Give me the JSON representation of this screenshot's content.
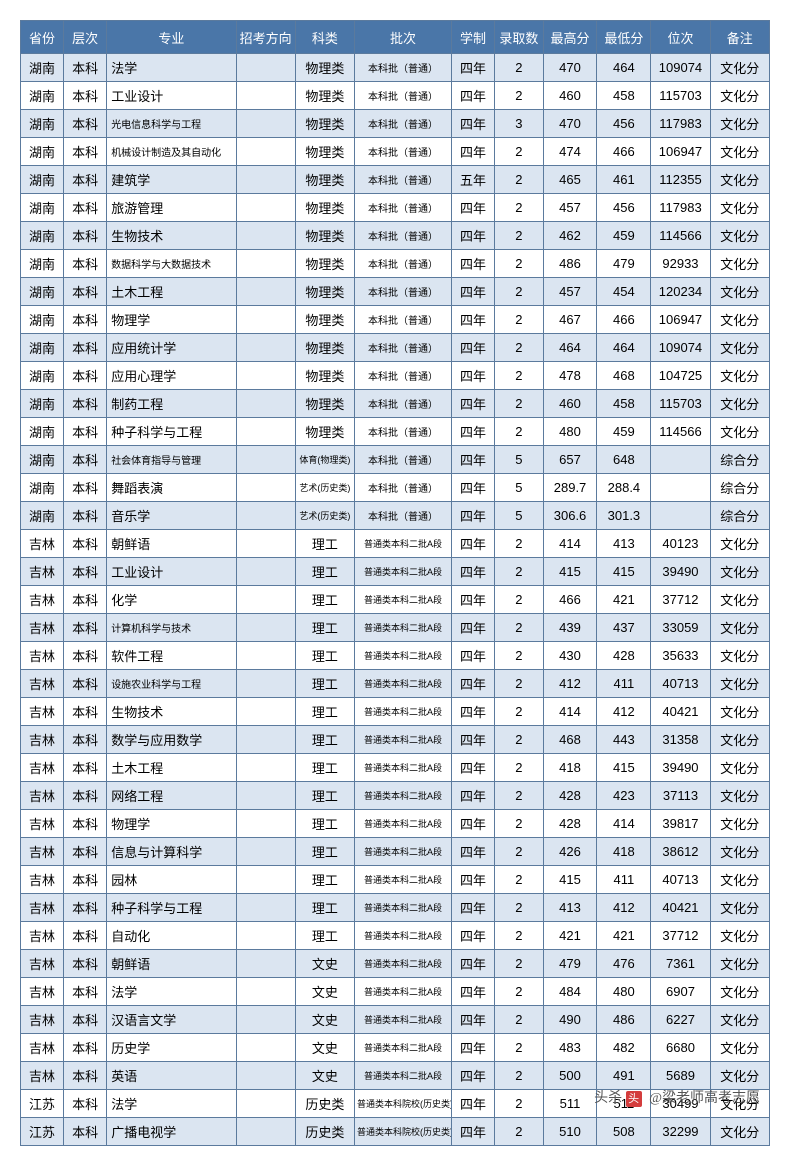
{
  "header": {
    "province": "省份",
    "level": "层次",
    "major": "专业",
    "direction": "招考方向",
    "subject": "科类",
    "batch": "批次",
    "duration": "学制",
    "count": "录取数",
    "max": "最高分",
    "min": "最低分",
    "rank": "位次",
    "note": "备注"
  },
  "rows": [
    {
      "province": "湖南",
      "level": "本科",
      "major": "法学",
      "direction": "",
      "subject": "物理类",
      "batch": "本科批（普通）",
      "duration": "四年",
      "count": "2",
      "max": "470",
      "min": "464",
      "rank": "109074",
      "note": "文化分"
    },
    {
      "province": "湖南",
      "level": "本科",
      "major": "工业设计",
      "direction": "",
      "subject": "物理类",
      "batch": "本科批（普通）",
      "duration": "四年",
      "count": "2",
      "max": "460",
      "min": "458",
      "rank": "115703",
      "note": "文化分"
    },
    {
      "province": "湖南",
      "level": "本科",
      "major": "光电信息科学与工程",
      "majorSmall": true,
      "direction": "",
      "subject": "物理类",
      "batch": "本科批（普通）",
      "duration": "四年",
      "count": "3",
      "max": "470",
      "min": "456",
      "rank": "117983",
      "note": "文化分"
    },
    {
      "province": "湖南",
      "level": "本科",
      "major": "机械设计制造及其自动化",
      "majorSmall": true,
      "direction": "",
      "subject": "物理类",
      "batch": "本科批（普通）",
      "duration": "四年",
      "count": "2",
      "max": "474",
      "min": "466",
      "rank": "106947",
      "note": "文化分"
    },
    {
      "province": "湖南",
      "level": "本科",
      "major": "建筑学",
      "direction": "",
      "subject": "物理类",
      "batch": "本科批（普通）",
      "duration": "五年",
      "count": "2",
      "max": "465",
      "min": "461",
      "rank": "112355",
      "note": "文化分"
    },
    {
      "province": "湖南",
      "level": "本科",
      "major": "旅游管理",
      "direction": "",
      "subject": "物理类",
      "batch": "本科批（普通）",
      "duration": "四年",
      "count": "2",
      "max": "457",
      "min": "456",
      "rank": "117983",
      "note": "文化分"
    },
    {
      "province": "湖南",
      "level": "本科",
      "major": "生物技术",
      "direction": "",
      "subject": "物理类",
      "batch": "本科批（普通）",
      "duration": "四年",
      "count": "2",
      "max": "462",
      "min": "459",
      "rank": "114566",
      "note": "文化分"
    },
    {
      "province": "湖南",
      "level": "本科",
      "major": "数据科学与大数据技术",
      "majorSmall": true,
      "direction": "",
      "subject": "物理类",
      "batch": "本科批（普通）",
      "duration": "四年",
      "count": "2",
      "max": "486",
      "min": "479",
      "rank": "92933",
      "note": "文化分"
    },
    {
      "province": "湖南",
      "level": "本科",
      "major": "土木工程",
      "direction": "",
      "subject": "物理类",
      "batch": "本科批（普通）",
      "duration": "四年",
      "count": "2",
      "max": "457",
      "min": "454",
      "rank": "120234",
      "note": "文化分"
    },
    {
      "province": "湖南",
      "level": "本科",
      "major": "物理学",
      "direction": "",
      "subject": "物理类",
      "batch": "本科批（普通）",
      "duration": "四年",
      "count": "2",
      "max": "467",
      "min": "466",
      "rank": "106947",
      "note": "文化分"
    },
    {
      "province": "湖南",
      "level": "本科",
      "major": "应用统计学",
      "direction": "",
      "subject": "物理类",
      "batch": "本科批（普通）",
      "duration": "四年",
      "count": "2",
      "max": "464",
      "min": "464",
      "rank": "109074",
      "note": "文化分"
    },
    {
      "province": "湖南",
      "level": "本科",
      "major": "应用心理学",
      "direction": "",
      "subject": "物理类",
      "batch": "本科批（普通）",
      "duration": "四年",
      "count": "2",
      "max": "478",
      "min": "468",
      "rank": "104725",
      "note": "文化分"
    },
    {
      "province": "湖南",
      "level": "本科",
      "major": "制药工程",
      "direction": "",
      "subject": "物理类",
      "batch": "本科批（普通）",
      "duration": "四年",
      "count": "2",
      "max": "460",
      "min": "458",
      "rank": "115703",
      "note": "文化分"
    },
    {
      "province": "湖南",
      "level": "本科",
      "major": "种子科学与工程",
      "direction": "",
      "subject": "物理类",
      "batch": "本科批（普通）",
      "duration": "四年",
      "count": "2",
      "max": "480",
      "min": "459",
      "rank": "114566",
      "note": "文化分"
    },
    {
      "province": "湖南",
      "level": "本科",
      "major": "社会体育指导与管理",
      "majorSmall": true,
      "direction": "",
      "subject": "体育(物理类)",
      "subjectSmall": true,
      "batch": "本科批（普通）",
      "duration": "四年",
      "count": "5",
      "max": "657",
      "min": "648",
      "rank": "",
      "note": "综合分"
    },
    {
      "province": "湖南",
      "level": "本科",
      "major": "舞蹈表演",
      "direction": "",
      "subject": "艺术(历史类)",
      "subjectSmall": true,
      "batch": "本科批（普通）",
      "duration": "四年",
      "count": "5",
      "max": "289.7",
      "min": "288.4",
      "rank": "",
      "note": "综合分"
    },
    {
      "province": "湖南",
      "level": "本科",
      "major": "音乐学",
      "direction": "",
      "subject": "艺术(历史类)",
      "subjectSmall": true,
      "batch": "本科批（普通）",
      "duration": "四年",
      "count": "5",
      "max": "306.6",
      "min": "301.3",
      "rank": "",
      "note": "综合分"
    },
    {
      "province": "吉林",
      "level": "本科",
      "major": "朝鲜语",
      "direction": "",
      "subject": "理工",
      "batch": "普通类本科二批A段",
      "batchSmall": true,
      "duration": "四年",
      "count": "2",
      "max": "414",
      "min": "413",
      "rank": "40123",
      "note": "文化分"
    },
    {
      "province": "吉林",
      "level": "本科",
      "major": "工业设计",
      "direction": "",
      "subject": "理工",
      "batch": "普通类本科二批A段",
      "batchSmall": true,
      "duration": "四年",
      "count": "2",
      "max": "415",
      "min": "415",
      "rank": "39490",
      "note": "文化分"
    },
    {
      "province": "吉林",
      "level": "本科",
      "major": "化学",
      "direction": "",
      "subject": "理工",
      "batch": "普通类本科二批A段",
      "batchSmall": true,
      "duration": "四年",
      "count": "2",
      "max": "466",
      "min": "421",
      "rank": "37712",
      "note": "文化分"
    },
    {
      "province": "吉林",
      "level": "本科",
      "major": "计算机科学与技术",
      "majorSmall": true,
      "direction": "",
      "subject": "理工",
      "batch": "普通类本科二批A段",
      "batchSmall": true,
      "duration": "四年",
      "count": "2",
      "max": "439",
      "min": "437",
      "rank": "33059",
      "note": "文化分"
    },
    {
      "province": "吉林",
      "level": "本科",
      "major": "软件工程",
      "direction": "",
      "subject": "理工",
      "batch": "普通类本科二批A段",
      "batchSmall": true,
      "duration": "四年",
      "count": "2",
      "max": "430",
      "min": "428",
      "rank": "35633",
      "note": "文化分"
    },
    {
      "province": "吉林",
      "level": "本科",
      "major": "设施农业科学与工程",
      "majorSmall": true,
      "direction": "",
      "subject": "理工",
      "batch": "普通类本科二批A段",
      "batchSmall": true,
      "duration": "四年",
      "count": "2",
      "max": "412",
      "min": "411",
      "rank": "40713",
      "note": "文化分"
    },
    {
      "province": "吉林",
      "level": "本科",
      "major": "生物技术",
      "direction": "",
      "subject": "理工",
      "batch": "普通类本科二批A段",
      "batchSmall": true,
      "duration": "四年",
      "count": "2",
      "max": "414",
      "min": "412",
      "rank": "40421",
      "note": "文化分"
    },
    {
      "province": "吉林",
      "level": "本科",
      "major": "数学与应用数学",
      "direction": "",
      "subject": "理工",
      "batch": "普通类本科二批A段",
      "batchSmall": true,
      "duration": "四年",
      "count": "2",
      "max": "468",
      "min": "443",
      "rank": "31358",
      "note": "文化分"
    },
    {
      "province": "吉林",
      "level": "本科",
      "major": "土木工程",
      "direction": "",
      "subject": "理工",
      "batch": "普通类本科二批A段",
      "batchSmall": true,
      "duration": "四年",
      "count": "2",
      "max": "418",
      "min": "415",
      "rank": "39490",
      "note": "文化分"
    },
    {
      "province": "吉林",
      "level": "本科",
      "major": "网络工程",
      "direction": "",
      "subject": "理工",
      "batch": "普通类本科二批A段",
      "batchSmall": true,
      "duration": "四年",
      "count": "2",
      "max": "428",
      "min": "423",
      "rank": "37113",
      "note": "文化分"
    },
    {
      "province": "吉林",
      "level": "本科",
      "major": "物理学",
      "direction": "",
      "subject": "理工",
      "batch": "普通类本科二批A段",
      "batchSmall": true,
      "duration": "四年",
      "count": "2",
      "max": "428",
      "min": "414",
      "rank": "39817",
      "note": "文化分"
    },
    {
      "province": "吉林",
      "level": "本科",
      "major": "信息与计算科学",
      "direction": "",
      "subject": "理工",
      "batch": "普通类本科二批A段",
      "batchSmall": true,
      "duration": "四年",
      "count": "2",
      "max": "426",
      "min": "418",
      "rank": "38612",
      "note": "文化分"
    },
    {
      "province": "吉林",
      "level": "本科",
      "major": "园林",
      "direction": "",
      "subject": "理工",
      "batch": "普通类本科二批A段",
      "batchSmall": true,
      "duration": "四年",
      "count": "2",
      "max": "415",
      "min": "411",
      "rank": "40713",
      "note": "文化分"
    },
    {
      "province": "吉林",
      "level": "本科",
      "major": "种子科学与工程",
      "direction": "",
      "subject": "理工",
      "batch": "普通类本科二批A段",
      "batchSmall": true,
      "duration": "四年",
      "count": "2",
      "max": "413",
      "min": "412",
      "rank": "40421",
      "note": "文化分"
    },
    {
      "province": "吉林",
      "level": "本科",
      "major": "自动化",
      "direction": "",
      "subject": "理工",
      "batch": "普通类本科二批A段",
      "batchSmall": true,
      "duration": "四年",
      "count": "2",
      "max": "421",
      "min": "421",
      "rank": "37712",
      "note": "文化分"
    },
    {
      "province": "吉林",
      "level": "本科",
      "major": "朝鲜语",
      "direction": "",
      "subject": "文史",
      "batch": "普通类本科二批A段",
      "batchSmall": true,
      "duration": "四年",
      "count": "2",
      "max": "479",
      "min": "476",
      "rank": "7361",
      "note": "文化分"
    },
    {
      "province": "吉林",
      "level": "本科",
      "major": "法学",
      "direction": "",
      "subject": "文史",
      "batch": "普通类本科二批A段",
      "batchSmall": true,
      "duration": "四年",
      "count": "2",
      "max": "484",
      "min": "480",
      "rank": "6907",
      "note": "文化分"
    },
    {
      "province": "吉林",
      "level": "本科",
      "major": "汉语言文学",
      "direction": "",
      "subject": "文史",
      "batch": "普通类本科二批A段",
      "batchSmall": true,
      "duration": "四年",
      "count": "2",
      "max": "490",
      "min": "486",
      "rank": "6227",
      "note": "文化分"
    },
    {
      "province": "吉林",
      "level": "本科",
      "major": "历史学",
      "direction": "",
      "subject": "文史",
      "batch": "普通类本科二批A段",
      "batchSmall": true,
      "duration": "四年",
      "count": "2",
      "max": "483",
      "min": "482",
      "rank": "6680",
      "note": "文化分"
    },
    {
      "province": "吉林",
      "level": "本科",
      "major": "英语",
      "direction": "",
      "subject": "文史",
      "batch": "普通类本科二批A段",
      "batchSmall": true,
      "duration": "四年",
      "count": "2",
      "max": "500",
      "min": "491",
      "rank": "5689",
      "note": "文化分"
    },
    {
      "province": "江苏",
      "level": "本科",
      "major": "法学",
      "direction": "",
      "subject": "历史类",
      "batch": "普通类本科院校(历史类)",
      "batchSmall": true,
      "duration": "四年",
      "count": "2",
      "max": "511",
      "min": "511",
      "rank": "30499",
      "note": "文化分"
    },
    {
      "province": "江苏",
      "level": "本科",
      "major": "广播电视学",
      "direction": "",
      "subject": "历史类",
      "batch": "普通类本科院校(历史类)",
      "batchSmall": true,
      "duration": "四年",
      "count": "2",
      "max": "510",
      "min": "508",
      "rank": "32299",
      "note": "文化分"
    }
  ],
  "watermark": "@梁老师高考志愿",
  "watermark_prefix": "头杀",
  "watermark_icon": "头"
}
